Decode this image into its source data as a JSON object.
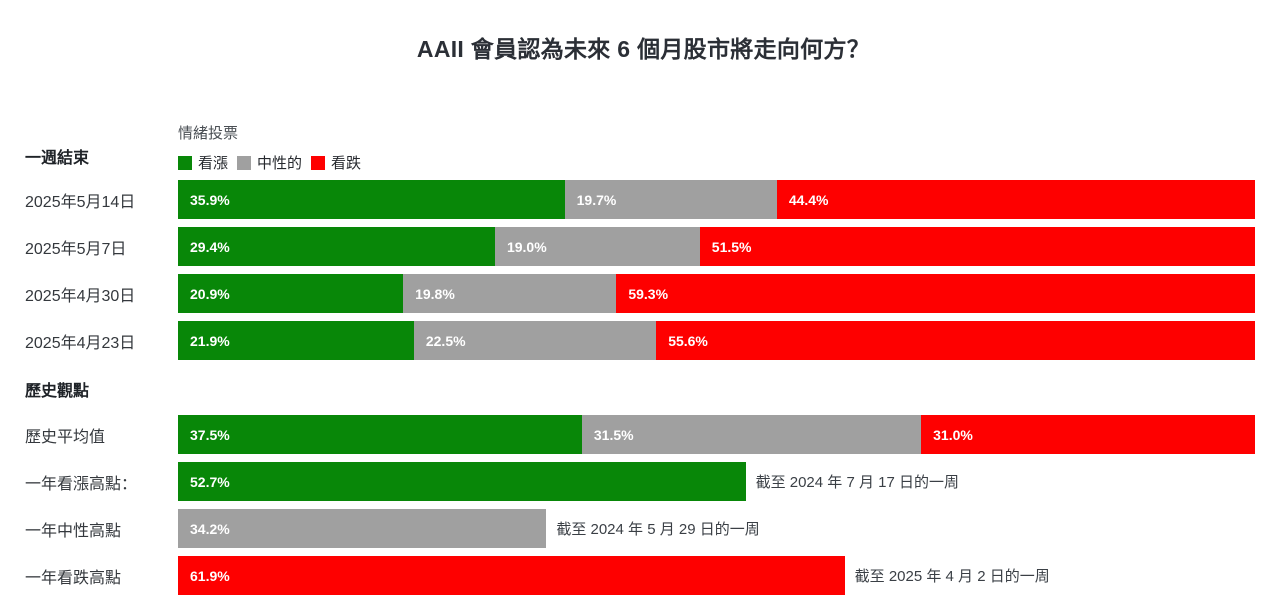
{
  "title": "AAII 會員認為未來 6 個月股市將走向何方？",
  "colors": {
    "bullish": "#088708",
    "neutral": "#a0a0a0",
    "bearish": "#fe0000"
  },
  "legend": {
    "title": "情緒投票",
    "items": [
      {
        "key": "bullish",
        "label": "看漲"
      },
      {
        "key": "neutral",
        "label": "中性的"
      },
      {
        "key": "bearish",
        "label": "看跌"
      }
    ]
  },
  "sections": {
    "weekly_header": "一週結束",
    "history_header": "歷史觀點"
  },
  "chart_data": {
    "type": "bar",
    "orientation": "horizontal-stacked",
    "unit": "%",
    "xlim": [
      0,
      100
    ],
    "series_names": [
      "看漲",
      "中性的",
      "看跌"
    ],
    "weekly_rows": [
      {
        "label": "2025年5月14日",
        "bullish": 35.9,
        "neutral": 19.7,
        "bearish": 44.4
      },
      {
        "label": "2025年5月7日",
        "bullish": 29.4,
        "neutral": 19.0,
        "bearish": 51.5
      },
      {
        "label": "2025年4月30日",
        "bullish": 20.9,
        "neutral": 19.8,
        "bearish": 59.3
      },
      {
        "label": "2025年4月23日",
        "bullish": 21.9,
        "neutral": 22.5,
        "bearish": 55.6
      }
    ],
    "history_average": {
      "label": "歷史平均值",
      "bullish": 37.5,
      "neutral": 31.5,
      "bearish": 31.0
    },
    "extremes": [
      {
        "label": "一年看漲高點：",
        "key": "bullish",
        "value": 52.7,
        "note": "截至 2024 年 7 月 17 日的一周"
      },
      {
        "label": "一年中性高點",
        "key": "neutral",
        "value": 34.2,
        "note": "截至 2024 年 5 月 29 日的一周"
      },
      {
        "label": "一年看跌高點",
        "key": "bearish",
        "value": 61.9,
        "note": "截至 2025 年 4 月 2 日的一周"
      }
    ]
  }
}
